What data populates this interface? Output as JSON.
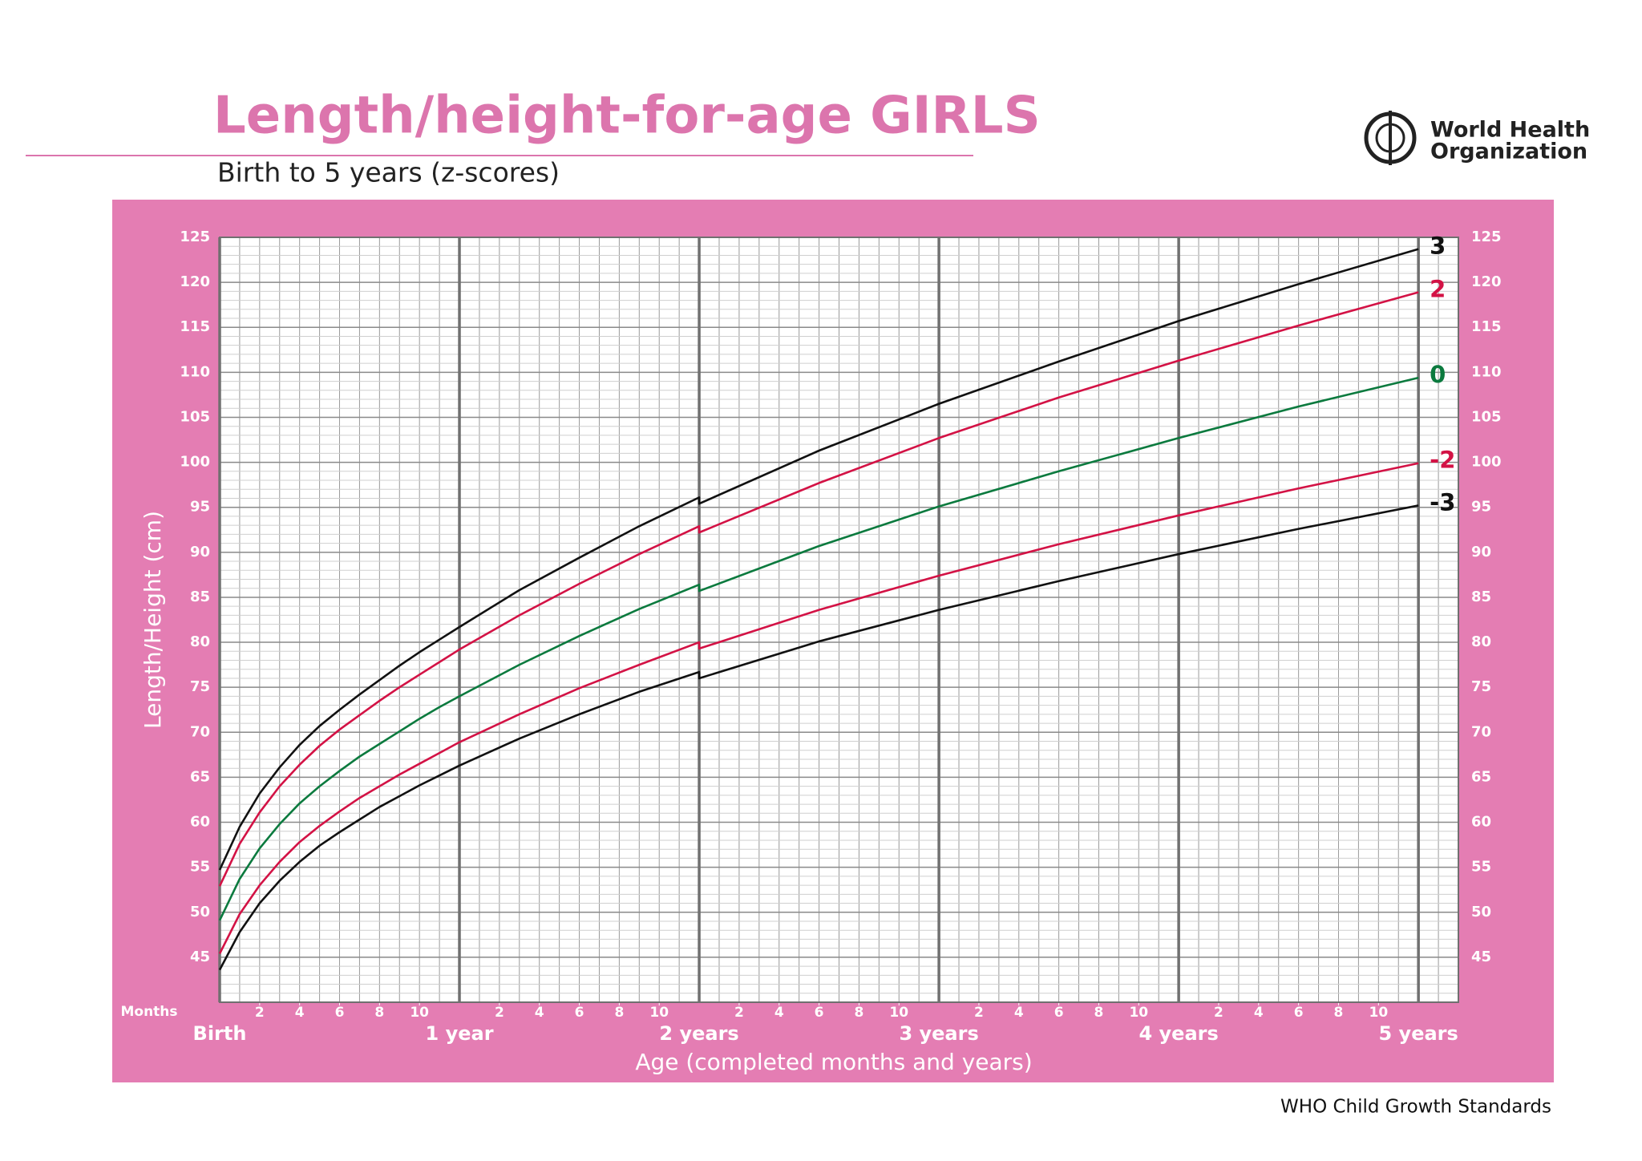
{
  "chart_data": {
    "type": "line",
    "title": "Length/height-for-age GIRLS",
    "subtitle": "Birth to 5 years (z-scores)",
    "organization": [
      "World Health",
      "Organization"
    ],
    "footer": "WHO Child Growth Standards",
    "ylabel": "Length/Height (cm)",
    "xlabel": "Age (completed months and years)",
    "x_minor_label": "Months",
    "x": [
      0,
      1,
      2,
      3,
      4,
      5,
      6,
      7,
      8,
      9,
      10,
      11,
      12,
      15,
      18,
      21,
      24,
      24,
      30,
      36,
      42,
      48,
      54,
      60
    ],
    "series": [
      {
        "name": "3",
        "color": "#111111",
        "values": [
          54.7,
          59.5,
          63.2,
          66.1,
          68.6,
          70.7,
          72.5,
          74.2,
          75.8,
          77.4,
          78.9,
          80.3,
          81.7,
          85.8,
          89.4,
          92.9,
          96.1,
          95.4,
          101.3,
          106.5,
          111.2,
          115.7,
          119.8,
          123.7
        ]
      },
      {
        "name": "2",
        "color": "#d31245",
        "values": [
          52.9,
          57.6,
          61.1,
          64.0,
          66.4,
          68.5,
          70.3,
          71.9,
          73.5,
          75.0,
          76.4,
          77.8,
          79.2,
          83.0,
          86.5,
          89.8,
          92.9,
          92.2,
          97.7,
          102.7,
          107.2,
          111.3,
          115.2,
          118.9
        ]
      },
      {
        "name": "0",
        "color": "#0b7a3e",
        "values": [
          49.1,
          53.7,
          57.1,
          59.8,
          62.1,
          64.0,
          65.7,
          67.3,
          68.7,
          70.1,
          71.5,
          72.8,
          74.0,
          77.5,
          80.7,
          83.7,
          86.4,
          85.7,
          90.7,
          95.1,
          99.0,
          102.7,
          106.2,
          109.4
        ]
      },
      {
        "name": "-2",
        "color": "#d31245",
        "values": [
          45.4,
          49.8,
          53.0,
          55.6,
          57.8,
          59.6,
          61.2,
          62.7,
          64.0,
          65.3,
          66.5,
          67.7,
          68.9,
          72.0,
          74.9,
          77.5,
          80.0,
          79.3,
          83.6,
          87.4,
          90.9,
          94.1,
          97.1,
          99.9
        ]
      },
      {
        "name": "-3",
        "color": "#111111",
        "values": [
          43.6,
          47.8,
          51.0,
          53.5,
          55.6,
          57.4,
          58.9,
          60.3,
          61.7,
          62.9,
          64.1,
          65.2,
          66.3,
          69.3,
          72.0,
          74.5,
          76.7,
          76.0,
          80.1,
          83.6,
          86.8,
          89.8,
          92.6,
          95.2
        ]
      }
    ],
    "xlim": [
      0,
      62
    ],
    "ylim": [
      40,
      125
    ],
    "yticks": [
      45,
      50,
      55,
      60,
      65,
      70,
      75,
      80,
      85,
      90,
      95,
      100,
      105,
      110,
      115,
      120,
      125
    ],
    "xticks": [
      {
        "value": 2,
        "label": "2"
      },
      {
        "value": 4,
        "label": "4"
      },
      {
        "value": 6,
        "label": "6"
      },
      {
        "value": 8,
        "label": "8"
      },
      {
        "value": 10,
        "label": "10"
      },
      {
        "value": 14,
        "label": "2"
      },
      {
        "value": 16,
        "label": "4"
      },
      {
        "value": 18,
        "label": "6"
      },
      {
        "value": 20,
        "label": "8"
      },
      {
        "value": 22,
        "label": "10"
      },
      {
        "value": 26,
        "label": "2"
      },
      {
        "value": 28,
        "label": "4"
      },
      {
        "value": 30,
        "label": "6"
      },
      {
        "value": 32,
        "label": "8"
      },
      {
        "value": 34,
        "label": "10"
      },
      {
        "value": 38,
        "label": "2"
      },
      {
        "value": 40,
        "label": "4"
      },
      {
        "value": 42,
        "label": "6"
      },
      {
        "value": 44,
        "label": "8"
      },
      {
        "value": 46,
        "label": "10"
      },
      {
        "value": 50,
        "label": "2"
      },
      {
        "value": 52,
        "label": "4"
      },
      {
        "value": 54,
        "label": "6"
      },
      {
        "value": 56,
        "label": "8"
      },
      {
        "value": 58,
        "label": "10"
      }
    ],
    "xmajor_ticks": [
      {
        "value": 0,
        "label": "Birth"
      },
      {
        "value": 12,
        "label": "1 year"
      },
      {
        "value": 24,
        "label": "2 years"
      },
      {
        "value": 36,
        "label": "3 years"
      },
      {
        "value": 48,
        "label": "4 years"
      },
      {
        "value": 60,
        "label": "5 years"
      }
    ],
    "grid": true,
    "panel_color": "#e47db3",
    "title_color": "#dc75ad"
  }
}
